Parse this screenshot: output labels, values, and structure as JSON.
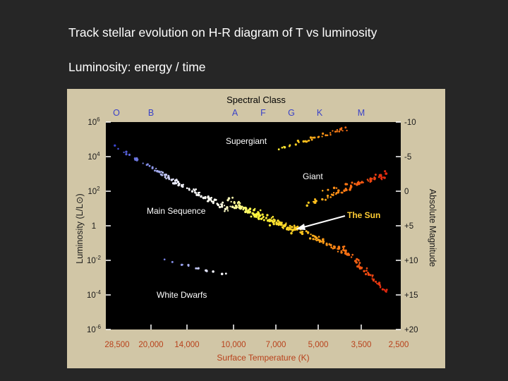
{
  "slide": {
    "line1": "Track stellar evolution on H-R diagram of T vs luminosity",
    "line2": "Luminosity: energy / time"
  },
  "diagram": {
    "top_title": "Spectral Class",
    "spectral_classes": [
      "O",
      "B",
      "A",
      "F",
      "G",
      "K",
      "M"
    ],
    "left_axis_label": "Luminosity (L/L⊙)",
    "luminosity_ticks": [
      {
        "base": "10",
        "exp": "6"
      },
      {
        "base": "10",
        "exp": "4"
      },
      {
        "base": "10",
        "exp": "2"
      },
      {
        "base": "1",
        "exp": ""
      },
      {
        "base": "10",
        "exp": "-2"
      },
      {
        "base": "10",
        "exp": "-4"
      },
      {
        "base": "10",
        "exp": "-6"
      }
    ],
    "right_axis_label": "Absolute Magnitude",
    "magnitude_ticks": [
      "-10",
      "-5",
      "0",
      "+5",
      "+10",
      "+15",
      "+20"
    ],
    "bottom_axis_label": "Surface Temperature (K)",
    "temperature_ticks": [
      "28,500",
      "20,000",
      "14,000",
      "10,000",
      "7,000",
      "5,000",
      "3,500",
      "2,500"
    ],
    "region_labels": {
      "supergiant": "Supergiant",
      "giant": "Giant",
      "main_sequence": "Main Sequence",
      "white_dwarfs": "White Dwarfs",
      "sun": "The Sun"
    },
    "colors": {
      "panel": "#d1c6a6",
      "plot": "#000000",
      "title": "#3a42c8",
      "axis_text": "#ffffff",
      "temperature_text": "#b8401a",
      "sun_label": "#ffcc33",
      "hot_star": "#3344cc",
      "cool_star": "#e02010"
    }
  }
}
